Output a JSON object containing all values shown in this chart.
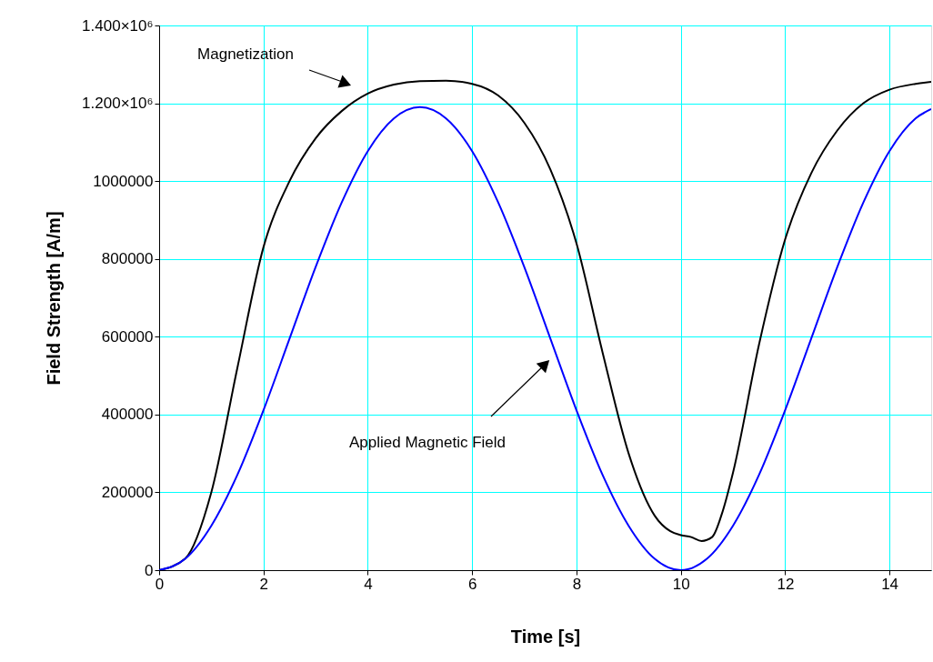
{
  "chart_data": {
    "type": "line",
    "xlabel": "Time  [s]",
    "ylabel": "Field Strength  [A/m]",
    "xlim": [
      0,
      14.8
    ],
    "xticks": [
      0,
      2,
      4,
      6,
      8,
      10,
      12,
      14
    ],
    "ylim": [
      0,
      1400000
    ],
    "yticks": [
      0,
      200000,
      400000,
      600000,
      800000,
      1000000,
      {
        "value": 1200000,
        "label": "1.200×10⁶"
      },
      {
        "value": 1400000,
        "label": "1.400×10⁶"
      }
    ],
    "grid": true,
    "marker": "none",
    "line_style": "solid",
    "series": [
      {
        "color": "#000000",
        "x": [
          0,
          0.5,
          1,
          1.5,
          2,
          2.5,
          3,
          3.5,
          4,
          4.5,
          5,
          5.5,
          6,
          6.5,
          7,
          7.5,
          8,
          8.5,
          9,
          9.5,
          9.8,
          10,
          10.2,
          10.4,
          10.6,
          10.8,
          11,
          11.5,
          12,
          12.5,
          13,
          13.5,
          14,
          14.5,
          14.8
        ],
        "values": [
          0,
          30000,
          200000,
          520000,
          830000,
          1000000,
          1110000,
          1180000,
          1225000,
          1248000,
          1257000,
          1258000,
          1250000,
          1220000,
          1150000,
          1030000,
          840000,
          560000,
          300000,
          140000,
          100000,
          90000,
          85000,
          75000,
          85000,
          150000,
          250000,
          580000,
          850000,
          1020000,
          1130000,
          1200000,
          1235000,
          1250000,
          1255000
        ]
      },
      {
        "color": "#0000ff",
        "x": [
          0,
          0.5,
          1,
          1.5,
          2,
          2.5,
          3,
          3.5,
          4,
          4.5,
          5,
          5.5,
          6,
          6.5,
          7,
          7.5,
          8,
          8.5,
          9,
          9.5,
          10,
          10.5,
          11,
          11.5,
          12,
          12.5,
          13,
          13.5,
          14,
          14.5,
          14.8
        ],
        "values": [
          0,
          29000,
          114000,
          245000,
          411000,
          595000,
          779000,
          945000,
          1077000,
          1161000,
          1190000,
          1161000,
          1077000,
          945000,
          779000,
          595000,
          411000,
          245000,
          114000,
          29000,
          0,
          29000,
          114000,
          245000,
          411000,
          595000,
          779000,
          945000,
          1077000,
          1161000,
          1185000
        ]
      }
    ],
    "annotations": [
      "Magnetization",
      "Applied Magnetic Field"
    ]
  }
}
